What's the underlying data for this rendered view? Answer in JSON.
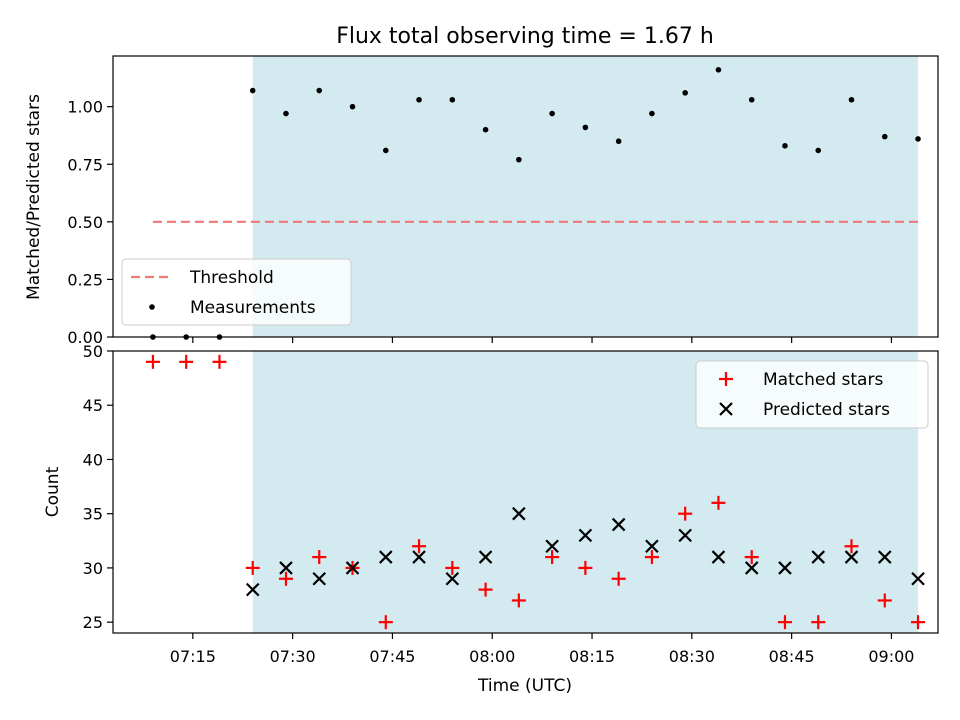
{
  "chart_data": [
    {
      "type": "scatter",
      "title": "Flux total observing time = 1.67 h",
      "ylabel": "Matched/Predicted stars",
      "xlabel": "",
      "ylim": [
        0,
        1.22
      ],
      "yticks": [
        0.0,
        0.25,
        0.5,
        0.75,
        1.0
      ],
      "ytick_labels": [
        "0.00",
        "0.25",
        "0.50",
        "0.75",
        "1.00"
      ],
      "shaded_span": {
        "from": "07:24",
        "to": "09:04",
        "color": "#d3eaf1"
      },
      "threshold": {
        "name": "Threshold",
        "value": 0.5,
        "from": "07:09",
        "to": "09:04",
        "color": "#f07878"
      },
      "series": [
        {
          "name": "Measurements",
          "color": "#000000",
          "x": [
            "07:09",
            "07:14",
            "07:19",
            "07:24",
            "07:29",
            "07:34",
            "07:39",
            "07:44",
            "07:49",
            "07:54",
            "07:59",
            "08:04",
            "08:09",
            "08:14",
            "08:19",
            "08:24",
            "08:29",
            "08:34",
            "08:39",
            "08:44",
            "08:49",
            "08:54",
            "08:59",
            "09:04"
          ],
          "y": [
            0.0,
            0.0,
            0.0,
            1.07,
            0.97,
            1.07,
            1.0,
            0.81,
            1.03,
            1.03,
            0.9,
            0.77,
            0.97,
            0.91,
            0.85,
            0.97,
            1.06,
            1.16,
            1.03,
            0.83,
            0.81,
            1.03,
            0.87,
            0.86
          ]
        }
      ],
      "legend": {
        "position": "lower-left",
        "entries": [
          "Threshold",
          "Measurements"
        ]
      }
    },
    {
      "type": "scatter",
      "title": "",
      "xlabel": "Time (UTC)",
      "ylabel": "Count",
      "ylim": [
        24,
        50
      ],
      "yticks": [
        25,
        30,
        35,
        40,
        45,
        50
      ],
      "xlim": [
        "07:03",
        "09:07"
      ],
      "xticks": [
        "07:15",
        "07:30",
        "07:45",
        "08:00",
        "08:15",
        "08:30",
        "08:45",
        "09:00"
      ],
      "shaded_span": {
        "from": "07:24",
        "to": "09:04",
        "color": "#d3eaf1"
      },
      "series": [
        {
          "name": "Matched stars",
          "marker": "plus",
          "color": "#ff0000",
          "x": [
            "07:09",
            "07:14",
            "07:19",
            "07:24",
            "07:29",
            "07:34",
            "07:39",
            "07:44",
            "07:49",
            "07:54",
            "07:59",
            "08:04",
            "08:09",
            "08:14",
            "08:19",
            "08:24",
            "08:29",
            "08:34",
            "08:39",
            "08:44",
            "08:49",
            "08:54",
            "08:59",
            "09:04"
          ],
          "y": [
            49,
            49,
            49,
            30,
            29,
            31,
            30,
            25,
            32,
            30,
            28,
            27,
            31,
            30,
            29,
            31,
            35,
            36,
            31,
            25,
            25,
            32,
            27,
            25
          ]
        },
        {
          "name": "Predicted stars",
          "marker": "x",
          "color": "#000000",
          "x": [
            "07:24",
            "07:29",
            "07:34",
            "07:39",
            "07:44",
            "07:49",
            "07:54",
            "07:59",
            "08:04",
            "08:09",
            "08:14",
            "08:19",
            "08:24",
            "08:29",
            "08:34",
            "08:39",
            "08:44",
            "08:49",
            "08:54",
            "08:59",
            "09:04"
          ],
          "y": [
            28,
            30,
            29,
            30,
            31,
            31,
            29,
            31,
            35,
            32,
            33,
            34,
            32,
            33,
            31,
            30,
            30,
            31,
            31,
            31,
            29
          ]
        }
      ],
      "legend": {
        "position": "upper-right",
        "entries": [
          "Matched stars",
          "Predicted stars"
        ]
      }
    }
  ]
}
